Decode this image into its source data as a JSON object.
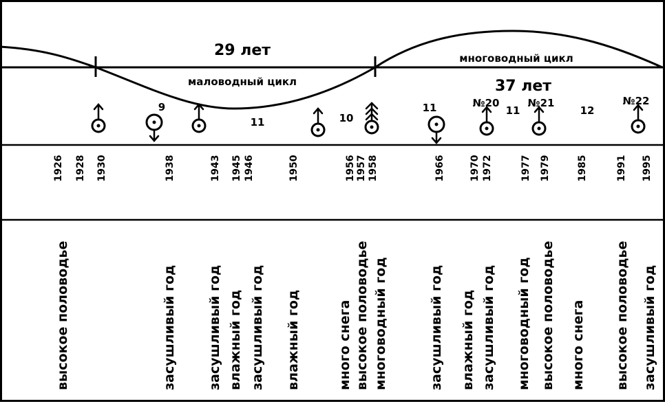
{
  "cycles": {
    "low_water": {
      "label": "маловодный цикл",
      "duration": "29 лет"
    },
    "high_water": {
      "label": "многоводный цикл",
      "duration": "37 лет"
    }
  },
  "solar_cycle_numbers": [
    "9",
    "10",
    "11",
    "11",
    "№20",
    "11",
    "№21",
    "12",
    "№22"
  ],
  "years": [
    "1926",
    "1928",
    "1930",
    "1938",
    "1943",
    "1945",
    "1946",
    "1950",
    "1956",
    "1957",
    "1958",
    "1966",
    "1970",
    "1972",
    "1977",
    "1979",
    "1985",
    "1991",
    "1995"
  ],
  "events": [
    {
      "year": "1926",
      "lines": [
        "высокое половодье"
      ]
    },
    {
      "year": "1938",
      "lines": [
        "засушливый год"
      ]
    },
    {
      "year": "1943",
      "lines": [
        "засушливый год"
      ]
    },
    {
      "year": "1945",
      "lines": [
        "влажный год"
      ]
    },
    {
      "year": "1946",
      "lines": [
        "засушливый год"
      ]
    },
    {
      "year": "1950",
      "lines": [
        "влажный год"
      ]
    },
    {
      "year": "1956",
      "lines": [
        "много снега"
      ]
    },
    {
      "year": "1957",
      "lines": [
        "высокое половодье"
      ]
    },
    {
      "year": "1958",
      "lines": [
        "многоводный год"
      ]
    },
    {
      "year": "1966",
      "lines": [
        "засушливый год"
      ]
    },
    {
      "year": "1970",
      "lines": [
        "влажный год"
      ]
    },
    {
      "year": "1972",
      "lines": [
        "засушливый год"
      ]
    },
    {
      "year": "1977",
      "lines": [
        "многоводный год"
      ]
    },
    {
      "year": "1979",
      "lines": [
        "высокое половодье"
      ]
    },
    {
      "year": "1985",
      "lines": [
        "много снега"
      ]
    },
    {
      "year": "1991",
      "lines": [
        "высокое половодье"
      ]
    },
    {
      "year": "1995",
      "lines": [
        "засушливый год"
      ]
    }
  ],
  "markers": [
    {
      "year": "1930",
      "kind": "up-arrow"
    },
    {
      "year": "1938",
      "kind": "down-arrow"
    },
    {
      "year": "1943",
      "kind": "up-arrow"
    },
    {
      "year": "1950",
      "kind": "up-arrow"
    },
    {
      "year": "1958",
      "kind": "triple-arrow"
    },
    {
      "year": "1966",
      "kind": "down-arrow"
    },
    {
      "year": "1972",
      "kind": "up-arrow"
    },
    {
      "year": "1979",
      "kind": "up-arrow"
    },
    {
      "year": "1995",
      "kind": "up-arrow"
    }
  ]
}
